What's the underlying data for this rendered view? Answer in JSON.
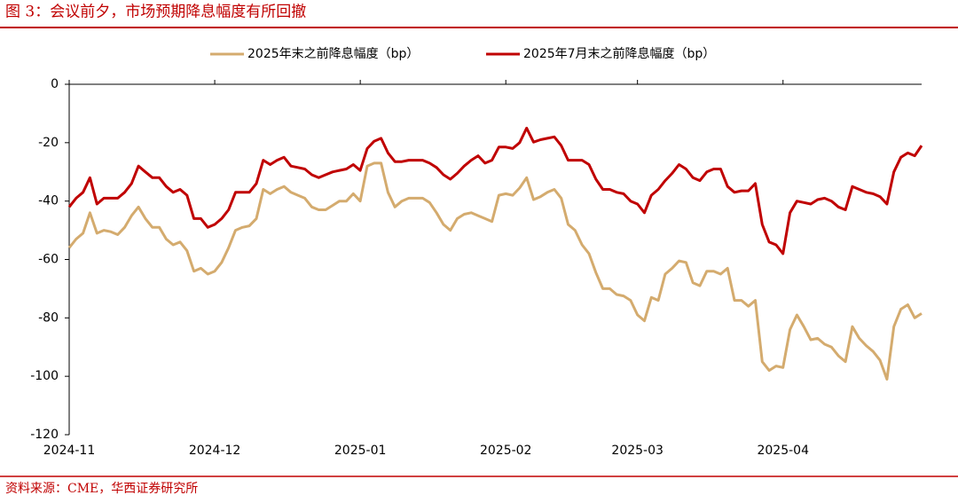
{
  "chart_data": {
    "type": "line",
    "title": "图 3：会议前夕，市场预期降息幅度有所回撤",
    "source": "资料来源：CME，华西证券研究所",
    "categories": [
      "2024-11",
      null,
      null,
      null,
      null,
      null,
      null,
      null,
      null,
      null,
      null,
      null,
      null,
      null,
      null,
      null,
      null,
      null,
      null,
      null,
      null,
      "2024-12",
      null,
      null,
      null,
      null,
      null,
      null,
      null,
      null,
      null,
      null,
      null,
      null,
      null,
      null,
      null,
      null,
      null,
      null,
      null,
      null,
      "2025-01",
      null,
      null,
      null,
      null,
      null,
      null,
      null,
      null,
      null,
      null,
      null,
      null,
      null,
      null,
      null,
      null,
      null,
      null,
      null,
      null,
      "2025-02",
      null,
      null,
      null,
      null,
      null,
      null,
      null,
      null,
      null,
      null,
      null,
      null,
      null,
      null,
      null,
      null,
      null,
      null,
      "2025-03",
      null,
      null,
      null,
      null,
      null,
      null,
      null,
      null,
      null,
      null,
      null,
      null,
      null,
      null,
      null,
      null,
      null,
      null,
      null,
      null,
      "2025-04",
      null,
      null,
      null,
      null,
      null,
      null,
      null,
      null,
      null,
      null,
      null,
      null,
      null,
      null,
      null,
      null,
      null,
      null,
      null,
      null
    ],
    "series": [
      {
        "name": "2025年末之前降息幅度（bp）",
        "color": "#d4ab6e",
        "values": [
          -56,
          -53,
          -51,
          -44,
          -51,
          -50,
          -50.5,
          -51.5,
          -49,
          -45,
          -42,
          -46,
          -49,
          -49,
          -53,
          -55,
          -54,
          -57,
          -64,
          -63,
          -65,
          -64,
          -61,
          -56,
          -50,
          -49,
          -48.5,
          -46,
          -36,
          -37.5,
          -36,
          -35,
          -37,
          -38,
          -39,
          -42,
          -43,
          -43,
          -41.5,
          -40,
          -40,
          -37.5,
          -40,
          -28,
          -27,
          -27,
          -37,
          -42,
          -40,
          -39,
          -39,
          -39,
          -40.5,
          -44,
          -48,
          -50,
          -46,
          -44.5,
          -44,
          -45,
          -46,
          -47,
          -38,
          -37.5,
          -38,
          -35.5,
          -32,
          -39.5,
          -38.5,
          -37,
          -36,
          -39,
          -48,
          -50,
          -55,
          -58,
          -64.5,
          -70,
          -70,
          -72,
          -72.5,
          -74,
          -79,
          -81,
          -73,
          -74,
          -65,
          -63,
          -60.5,
          -61,
          -68,
          -69,
          -64,
          -64,
          -65,
          -63,
          -74,
          -74,
          -76,
          -74,
          -95,
          -98,
          -96.5,
          -97,
          -84,
          -79,
          -83,
          -87.5,
          -87,
          -89,
          -90,
          -93,
          -95,
          -83,
          -87,
          -89.5,
          -91.5,
          -94.5,
          -101,
          -83,
          -77,
          -75.5,
          -80,
          -78.5
        ]
      },
      {
        "name": "2025年7月末之前降息幅度（bp）",
        "color": "#c00000",
        "values": [
          -42,
          -39,
          -37,
          -32,
          -41,
          -39,
          -39,
          -39,
          -37,
          -34,
          -28,
          -30,
          -32,
          -32,
          -35,
          -37,
          -36,
          -38,
          -46,
          -46,
          -49,
          -48,
          -46,
          -43,
          -37,
          -37,
          -37,
          -34,
          -26,
          -27.5,
          -26,
          -25,
          -28,
          -28.5,
          -29,
          -31,
          -32,
          -31,
          -30,
          -29.5,
          -29,
          -27.5,
          -29.5,
          -22,
          -19.5,
          -18.5,
          -23.5,
          -26.5,
          -26.5,
          -26,
          -26,
          -26,
          -27,
          -28.5,
          -31,
          -32.5,
          -30.5,
          -28,
          -26,
          -24.5,
          -27,
          -26,
          -21.5,
          -21.5,
          -22,
          -20,
          -15,
          -19.8,
          -19,
          -18.5,
          -18,
          -21,
          -26,
          -26,
          -26,
          -27.5,
          -32.5,
          -36,
          -36,
          -37,
          -37.5,
          -40,
          -41,
          -44,
          -38,
          -36,
          -33,
          -30.5,
          -27.5,
          -29,
          -32,
          -33,
          -30,
          -29,
          -29,
          -35,
          -37,
          -36.5,
          -36.5,
          -34,
          -48,
          -54,
          -55,
          -58,
          -44,
          -40,
          -40.5,
          -41,
          -39.5,
          -39,
          -40,
          -42,
          -43,
          -35,
          -36,
          -37,
          -37.5,
          -38.5,
          -41,
          -30,
          -25,
          -23.5,
          -24.5,
          -21
        ]
      }
    ],
    "ylim": [
      -120,
      0
    ],
    "yticks": [
      -120,
      -100,
      -80,
      -60,
      -40,
      -20,
      0
    ],
    "legend": "top"
  }
}
